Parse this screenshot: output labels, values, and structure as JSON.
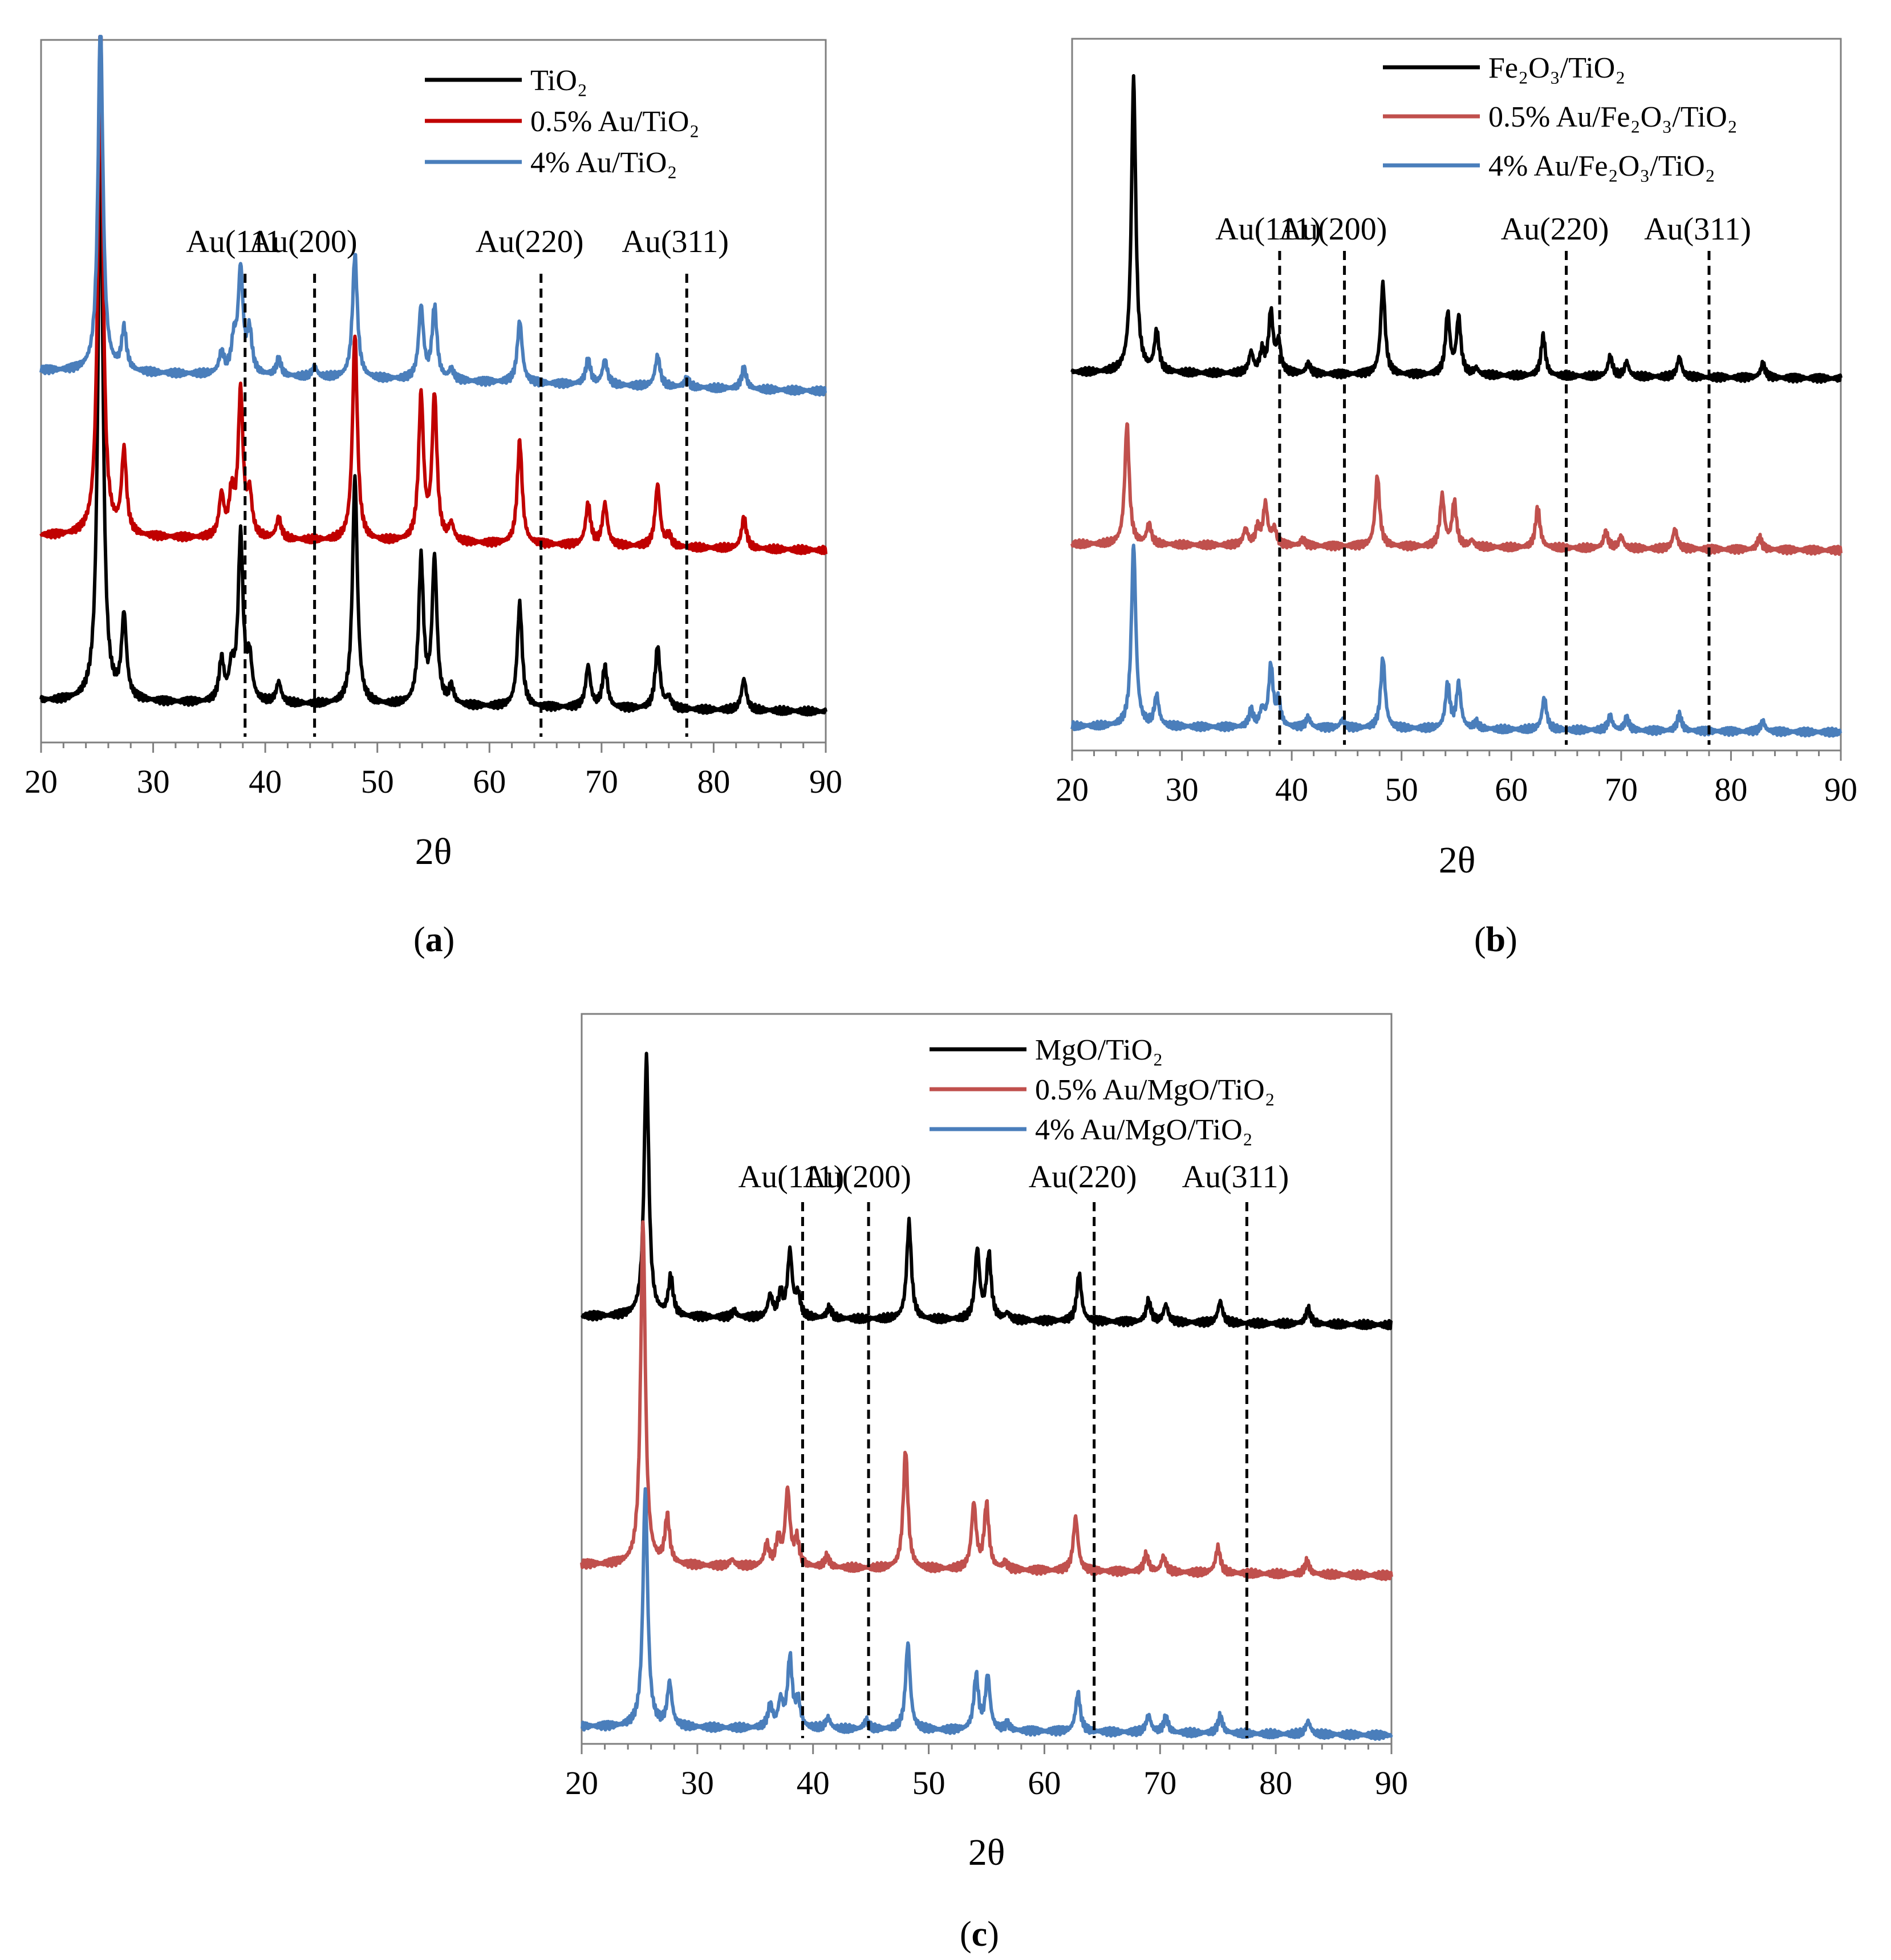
{
  "chart_data": [
    {
      "panel": "a",
      "type": "line",
      "caption_prefix": "(",
      "caption_letter": "a",
      "caption_suffix": ")",
      "xlabel": "2θ",
      "ylabel": "",
      "xlim": [
        20,
        90
      ],
      "xticks": [
        "20",
        "30",
        "40",
        "50",
        "60",
        "70",
        "80",
        "90"
      ],
      "reference_lines": [
        {
          "label": "Au(111",
          "x": 38.2
        },
        {
          "label": "Au(200)",
          "x": 44.4
        },
        {
          "label": "Au(220)",
          "x": 64.6
        },
        {
          "label": "Au(311)",
          "x": 77.6
        }
      ],
      "series": [
        {
          "name": "TiO₂",
          "color": "#000000",
          "offset": 0.0,
          "drift": -0.05
        },
        {
          "name": "0.5% Au/TiO₂",
          "color": "#c00000",
          "offset": 0.8,
          "drift": -0.07
        },
        {
          "name": "4% Au/TiO₂",
          "color": "#4a7ebb",
          "offset": 1.6,
          "drift": -0.1
        }
      ],
      "peaks": [
        {
          "series": "TiO₂",
          "values": [
            [
              25.3,
              2.8
            ],
            [
              27.4,
              0.4
            ],
            [
              36.1,
              0.2
            ],
            [
              37.0,
              0.15
            ],
            [
              37.8,
              0.8
            ],
            [
              38.6,
              0.2
            ],
            [
              41.2,
              0.1
            ],
            [
              48.0,
              1.1
            ],
            [
              53.9,
              0.7
            ],
            [
              55.1,
              0.7
            ],
            [
              56.6,
              0.08
            ],
            [
              62.7,
              0.5
            ],
            [
              68.8,
              0.2
            ],
            [
              70.3,
              0.2
            ],
            [
              75.0,
              0.3
            ],
            [
              76.0,
              0.05
            ],
            [
              82.7,
              0.15
            ]
          ]
        },
        {
          "series": "0.5% Au/TiO₂",
          "values": [
            [
              25.3,
              2.5
            ],
            [
              27.4,
              0.4
            ],
            [
              36.1,
              0.2
            ],
            [
              37.0,
              0.2
            ],
            [
              37.8,
              0.7
            ],
            [
              38.6,
              0.2
            ],
            [
              41.2,
              0.1
            ],
            [
              48.0,
              1.0
            ],
            [
              53.9,
              0.7
            ],
            [
              55.1,
              0.7
            ],
            [
              56.6,
              0.08
            ],
            [
              62.7,
              0.5
            ],
            [
              68.8,
              0.2
            ],
            [
              70.3,
              0.2
            ],
            [
              75.0,
              0.3
            ],
            [
              76.0,
              0.05
            ],
            [
              82.7,
              0.15
            ]
          ]
        },
        {
          "series": "4% Au/TiO₂",
          "values": [
            [
              25.3,
              1.7
            ],
            [
              27.4,
              0.2
            ],
            [
              36.1,
              0.1
            ],
            [
              37.2,
              0.15
            ],
            [
              37.8,
              0.5
            ],
            [
              38.6,
              0.2
            ],
            [
              41.2,
              0.08
            ],
            [
              44.4,
              0.05
            ],
            [
              48.0,
              0.6
            ],
            [
              53.9,
              0.35
            ],
            [
              55.1,
              0.35
            ],
            [
              56.6,
              0.05
            ],
            [
              62.7,
              0.3
            ],
            [
              68.8,
              0.12
            ],
            [
              70.3,
              0.12
            ],
            [
              75.0,
              0.15
            ],
            [
              77.6,
              0.04
            ],
            [
              82.7,
              0.1
            ]
          ]
        }
      ]
    },
    {
      "panel": "b",
      "type": "line",
      "caption_prefix": "(",
      "caption_letter": "b",
      "caption_suffix": ")",
      "xlabel": "2θ",
      "ylabel": "",
      "xlim": [
        20,
        90
      ],
      "xticks": [
        "20",
        "30",
        "40",
        "50",
        "60",
        "70",
        "80",
        "90"
      ],
      "reference_lines": [
        {
          "label": "Au(111)",
          "x": 38.9
        },
        {
          "label": "Au(200)",
          "x": 44.8
        },
        {
          "label": "Au(220)",
          "x": 65.0
        },
        {
          "label": "Au(311)",
          "x": 78.0
        }
      ],
      "series": [
        {
          "name": "Fe₂O₃/TiO₂",
          "color": "#000000",
          "offset": 1.75,
          "drift": -0.03
        },
        {
          "name": "0.5% Au/Fe₂O₃/TiO₂",
          "color": "#c0504d",
          "offset": 0.9,
          "drift": -0.03
        },
        {
          "name": "4% Au/Fe₂O₃/TiO₂",
          "color": "#4a7ebb",
          "offset": 0.0,
          "drift": -0.03
        }
      ],
      "peaks": [
        {
          "series": "Fe₂O₃/TiO₂",
          "values": [
            [
              25.6,
              1.45
            ],
            [
              27.7,
              0.2
            ],
            [
              36.3,
              0.1
            ],
            [
              37.3,
              0.1
            ],
            [
              38.1,
              0.3
            ],
            [
              38.8,
              0.15
            ],
            [
              41.5,
              0.05
            ],
            [
              48.3,
              0.45
            ],
            [
              54.2,
              0.3
            ],
            [
              55.2,
              0.28
            ],
            [
              56.8,
              0.03
            ],
            [
              62.9,
              0.2
            ],
            [
              69.0,
              0.1
            ],
            [
              70.5,
              0.07
            ],
            [
              75.3,
              0.1
            ],
            [
              82.9,
              0.07
            ]
          ]
        },
        {
          "series": "0.5% Au/Fe₂O₃/TiO₂",
          "values": [
            [
              25.0,
              0.6
            ],
            [
              27.0,
              0.1
            ],
            [
              35.8,
              0.08
            ],
            [
              36.9,
              0.08
            ],
            [
              37.6,
              0.2
            ],
            [
              38.4,
              0.08
            ],
            [
              41.0,
              0.03
            ],
            [
              47.8,
              0.35
            ],
            [
              53.7,
              0.25
            ],
            [
              54.8,
              0.22
            ],
            [
              56.4,
              0.03
            ],
            [
              62.4,
              0.2
            ],
            [
              68.6,
              0.08
            ],
            [
              70.0,
              0.06
            ],
            [
              74.9,
              0.1
            ],
            [
              82.6,
              0.06
            ]
          ]
        },
        {
          "series": "4% Au/Fe₂O₃/TiO₂",
          "values": [
            [
              25.6,
              0.9
            ],
            [
              27.7,
              0.15
            ],
            [
              36.3,
              0.08
            ],
            [
              37.3,
              0.08
            ],
            [
              38.1,
              0.3
            ],
            [
              38.8,
              0.12
            ],
            [
              41.5,
              0.05
            ],
            [
              44.6,
              0.04
            ],
            [
              48.3,
              0.35
            ],
            [
              54.2,
              0.22
            ],
            [
              55.2,
              0.22
            ],
            [
              56.8,
              0.03
            ],
            [
              63.0,
              0.16
            ],
            [
              69.0,
              0.07
            ],
            [
              70.5,
              0.06
            ],
            [
              75.3,
              0.08
            ],
            [
              82.9,
              0.05
            ]
          ]
        }
      ]
    },
    {
      "panel": "c",
      "type": "line",
      "caption_prefix": "(",
      "caption_letter": "c",
      "caption_suffix": ")",
      "xlabel": "2θ",
      "ylabel": "",
      "xlim": [
        20,
        90
      ],
      "xticks": [
        "20",
        "30",
        "40",
        "50",
        "60",
        "70",
        "80",
        "90"
      ],
      "reference_lines": [
        {
          "label": "Au(111)",
          "x": 39.1
        },
        {
          "label": "Au(200)",
          "x": 44.8
        },
        {
          "label": "Au(220)",
          "x": 64.3
        },
        {
          "label": "Au(311)",
          "x": 77.5
        }
      ],
      "series": [
        {
          "name": "MgO/TiO₂",
          "color": "#000000",
          "offset": 1.9,
          "drift": -0.04
        },
        {
          "name": "0.5% Au/MgO/TiO₂",
          "color": "#c0504d",
          "offset": 0.75,
          "drift": -0.05
        },
        {
          "name": "4% Au/MgO/TiO₂",
          "color": "#4a7ebb",
          "offset": 0.0,
          "drift": -0.04
        }
      ],
      "peaks": [
        {
          "series": "MgO/TiO₂",
          "values": [
            [
              25.6,
              1.2
            ],
            [
              27.7,
              0.18
            ],
            [
              33.2,
              0.03
            ],
            [
              36.3,
              0.1
            ],
            [
              37.2,
              0.1
            ],
            [
              38.0,
              0.3
            ],
            [
              38.7,
              0.1
            ],
            [
              41.4,
              0.05
            ],
            [
              48.3,
              0.45
            ],
            [
              54.2,
              0.32
            ],
            [
              55.2,
              0.3
            ],
            [
              56.8,
              0.03
            ],
            [
              63.0,
              0.22
            ],
            [
              69.0,
              0.1
            ],
            [
              70.5,
              0.08
            ],
            [
              75.2,
              0.1
            ],
            [
              82.8,
              0.07
            ]
          ]
        },
        {
          "series": "0.5% Au/MgO/TiO₂",
          "values": [
            [
              25.3,
              1.6
            ],
            [
              27.4,
              0.22
            ],
            [
              33.0,
              0.03
            ],
            [
              36.0,
              0.1
            ],
            [
              37.0,
              0.12
            ],
            [
              37.8,
              0.35
            ],
            [
              38.6,
              0.12
            ],
            [
              41.2,
              0.05
            ],
            [
              48.0,
              0.55
            ],
            [
              53.9,
              0.3
            ],
            [
              55.0,
              0.3
            ],
            [
              56.6,
              0.03
            ],
            [
              62.7,
              0.25
            ],
            [
              68.8,
              0.08
            ],
            [
              70.3,
              0.07
            ],
            [
              75.0,
              0.12
            ],
            [
              82.7,
              0.06
            ]
          ]
        },
        {
          "series": "4% Au/MgO/TiO₂",
          "values": [
            [
              25.5,
              1.1
            ],
            [
              27.6,
              0.2
            ],
            [
              36.3,
              0.1
            ],
            [
              37.2,
              0.12
            ],
            [
              38.0,
              0.32
            ],
            [
              38.7,
              0.12
            ],
            [
              41.3,
              0.05
            ],
            [
              44.6,
              0.04
            ],
            [
              48.2,
              0.4
            ],
            [
              54.1,
              0.25
            ],
            [
              55.1,
              0.25
            ],
            [
              56.8,
              0.03
            ],
            [
              62.9,
              0.18
            ],
            [
              69.0,
              0.08
            ],
            [
              70.5,
              0.07
            ],
            [
              75.2,
              0.08
            ],
            [
              82.8,
              0.06
            ]
          ]
        }
      ]
    }
  ]
}
